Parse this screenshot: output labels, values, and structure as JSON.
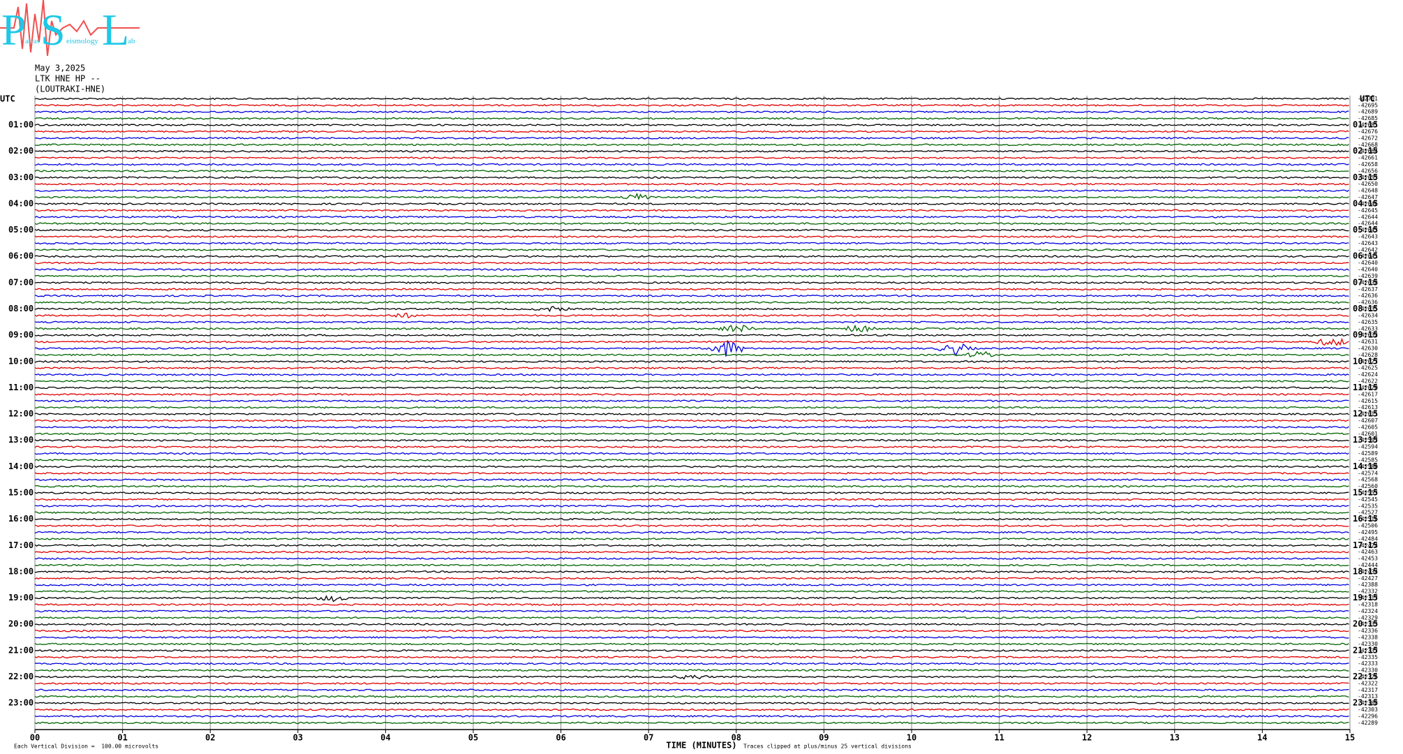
{
  "logo": {
    "letters": [
      "P",
      "S",
      "L"
    ],
    "words": [
      "atras",
      "eismology",
      "ab"
    ]
  },
  "header": {
    "date": "May 3,2025",
    "station": "LTK HNE HP --",
    "name": "(LOUTRAKI-HNE)"
  },
  "plot": {
    "utc_left": "UTC",
    "utc_right": "UTC",
    "left_labels": [
      "01:00",
      "02:00",
      "03:00",
      "04:00",
      "05:00",
      "06:00",
      "07:00",
      "08:00",
      "09:00",
      "10:00",
      "11:00",
      "12:00",
      "13:00",
      "14:00",
      "15:00",
      "16:00",
      "17:00",
      "18:00",
      "19:00",
      "20:00",
      "21:00",
      "22:00",
      "23:00"
    ],
    "right_labels": [
      "01:15",
      "02:15",
      "03:15",
      "04:15",
      "05:15",
      "06:15",
      "07:15",
      "08:15",
      "09:15",
      "10:15",
      "11:15",
      "12:15",
      "13:15",
      "14:15",
      "15:15",
      "16:15",
      "17:15",
      "18:15",
      "19:15",
      "20:15",
      "21:15",
      "22:15",
      "23:15"
    ],
    "trace_offsets": [
      -42701,
      -42695,
      -42689,
      -42685,
      -42681,
      -42676,
      -42672,
      -42668,
      -42664,
      -42661,
      -42658,
      -42656,
      -42653,
      -42650,
      -42648,
      -42647,
      -42646,
      -42645,
      -42644,
      -42644,
      -42643,
      -42643,
      -42643,
      -42642,
      -42641,
      -42640,
      -42640,
      -42639,
      -42638,
      -42637,
      -42636,
      -42636,
      -42635,
      -42634,
      -42635,
      -42633,
      -42632,
      -42631,
      -42630,
      -42628,
      -42627,
      -42625,
      -42624,
      -42622,
      -42620,
      -42617,
      -42615,
      -42613,
      -42611,
      -42607,
      -42605,
      -42601,
      -42597,
      -42594,
      -42589,
      -42585,
      -42580,
      -42574,
      -42568,
      -42560,
      -42553,
      -42545,
      -42535,
      -42527,
      -42516,
      -42506,
      -42495,
      -42484,
      -42474,
      -42463,
      -42453,
      -42444,
      -42434,
      -42427,
      -42388,
      -42332,
      -42317,
      -42318,
      -42324,
      -42329,
      -42333,
      -42336,
      -42338,
      -42330,
      -42337,
      -42335,
      -42333,
      -42330,
      -42326,
      -42322,
      -42317,
      -42313,
      -42308,
      -42303,
      -42296,
      -42289
    ],
    "trace_colors": [
      "#000000",
      "#e00000",
      "#0000e0",
      "#006400"
    ],
    "x_ticks": [
      "00",
      "01",
      "02",
      "03",
      "04",
      "05",
      "06",
      "07",
      "08",
      "09",
      "10",
      "11",
      "12",
      "13",
      "14",
      "15"
    ],
    "x_label": "TIME (MINUTES)",
    "clip_note": "Traces clipped at plus/minus 25 vertical divisions",
    "scale_note": "Each Vertical Division =  100.00 microvolts"
  }
}
